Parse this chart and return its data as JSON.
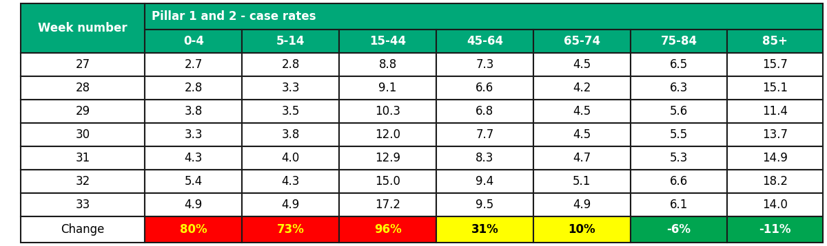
{
  "title": "Pillar 1 and 2 - case rates",
  "col_header": [
    "0-4",
    "5-14",
    "15-44",
    "45-64",
    "65-74",
    "75-84",
    "85+"
  ],
  "row_labels": [
    "Week number",
    "27",
    "28",
    "29",
    "30",
    "31",
    "32",
    "33",
    "Change"
  ],
  "data_rows": [
    [
      2.7,
      2.8,
      8.8,
      7.3,
      4.5,
      6.5,
      15.7
    ],
    [
      2.8,
      3.3,
      9.1,
      6.6,
      4.2,
      6.3,
      15.1
    ],
    [
      3.8,
      3.5,
      10.3,
      6.8,
      4.5,
      5.6,
      11.4
    ],
    [
      3.3,
      3.8,
      12.0,
      7.7,
      4.5,
      5.5,
      13.7
    ],
    [
      4.3,
      4.0,
      12.9,
      8.3,
      4.7,
      5.3,
      14.9
    ],
    [
      5.4,
      4.3,
      15.0,
      9.4,
      5.1,
      6.6,
      18.2
    ],
    [
      4.9,
      4.9,
      17.2,
      9.5,
      4.9,
      6.1,
      14.0
    ]
  ],
  "change_row": [
    "80%",
    "73%",
    "96%",
    "31%",
    "10%",
    "-6%",
    "-11%"
  ],
  "change_colors": [
    "#FF0000",
    "#FF0000",
    "#FF0000",
    "#FFFF00",
    "#FFFF00",
    "#00A550",
    "#00A550"
  ],
  "change_text_colors": [
    "#FFFF00",
    "#FFFF00",
    "#FFFF00",
    "#000000",
    "#000000",
    "#FFFFFF",
    "#FFFFFF"
  ],
  "header_bg": "#00A878",
  "subheader_bg": "#00A878",
  "header_text_color": "#FFFFFF",
  "data_bg": "#FFFFFF",
  "data_text_color": "#000000",
  "border_color": "#1a1a1a",
  "change_label_bg": "#FFFFFF",
  "figsize": [
    12.0,
    3.58
  ],
  "dpi": 100
}
